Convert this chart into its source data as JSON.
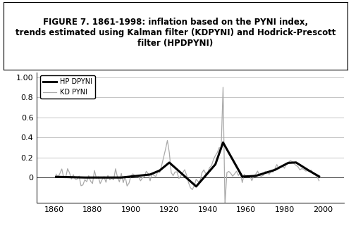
{
  "title": "FIGURE 7. 1861-1998: inflation based on the PYNI index,\ntrends estimated using Kalman filter (KDPYNI) and Hodrick-Prescott\nfilter (HPDPYNI)",
  "title_fontsize": 8.5,
  "title_fontweight": "bold",
  "xlabel": "",
  "ylabel": "",
  "xlim": [
    1851,
    2011
  ],
  "ylim": [
    -0.25,
    1.05
  ],
  "yticks": [
    0.0,
    0.2,
    0.4,
    0.6,
    0.8,
    1.0
  ],
  "ytick_labels": [
    "0",
    "0.2",
    "0.4",
    "0.6",
    "0.8",
    "1.00"
  ],
  "xticks": [
    1860,
    1880,
    1900,
    1920,
    1940,
    1960,
    1980,
    2000
  ],
  "hp_color": "#000000",
  "kd_color": "#aaaaaa",
  "hp_linewidth": 2.2,
  "kd_linewidth": 0.9,
  "legend_hp": "HP DPYNI",
  "legend_kd": "KD PYNI",
  "background_color": "#ffffff",
  "grid_color": "#bbbbbb"
}
